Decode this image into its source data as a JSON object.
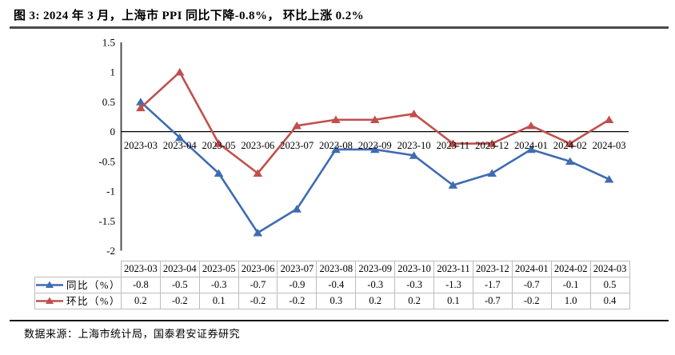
{
  "title": "图 3:  2024 年 3 月，上海市 PPI 同比下降-0.8%，  环比上涨 0.2%",
  "footer": {
    "source_label": "数据来源：上海市统计局，国泰君安证券研究"
  },
  "chart_data": {
    "type": "line",
    "title": "",
    "xlabel": "",
    "ylabel": "",
    "categories": [
      "2023-03",
      "2023-04",
      "2023-05",
      "2023-06",
      "2023-07",
      "2023-08",
      "2023-09",
      "2023-10",
      "2023-11",
      "2023-12",
      "2024-01",
      "2024-02",
      "2024-03"
    ],
    "series": [
      {
        "name": "同比（%）",
        "color": "#3e6cb2",
        "marker": "triangle",
        "values": [
          -0.8,
          -0.5,
          -0.3,
          -0.7,
          -0.9,
          -0.4,
          -0.3,
          -0.3,
          -1.3,
          -1.7,
          -0.7,
          -0.1,
          0.5
        ]
      },
      {
        "name": "环比（%）",
        "color": "#c0504d",
        "marker": "triangle",
        "values": [
          0.2,
          -0.2,
          0.1,
          -0.2,
          -0.2,
          0.3,
          0.2,
          0.2,
          0.1,
          -0.7,
          -0.2,
          1.0,
          0.4
        ]
      }
    ],
    "ylim": [
      -2,
      1.5
    ],
    "yticks": [
      1.5,
      1,
      0.5,
      0,
      -0.5,
      -1,
      -1.5,
      -2
    ],
    "grid": false,
    "legend_position": "table-left",
    "x_labels_at_zero_line": true,
    "series_plotted_in_reverse_category_order": true
  },
  "table": {
    "rows": [
      {
        "legend": "同比（%）",
        "values": [
          "-0.8",
          "-0.5",
          "-0.3",
          "-0.7",
          "-0.9",
          "-0.4",
          "-0.3",
          "-0.3",
          "-1.3",
          "-1.7",
          "-0.7",
          "-0.1",
          "0.5"
        ]
      },
      {
        "legend": "环比（%）",
        "values": [
          "0.2",
          "-0.2",
          "0.1",
          "-0.2",
          "-0.2",
          "0.3",
          "0.2",
          "0.2",
          "0.1",
          "-0.7",
          "-0.2",
          "1.0",
          "0.4"
        ]
      }
    ]
  }
}
